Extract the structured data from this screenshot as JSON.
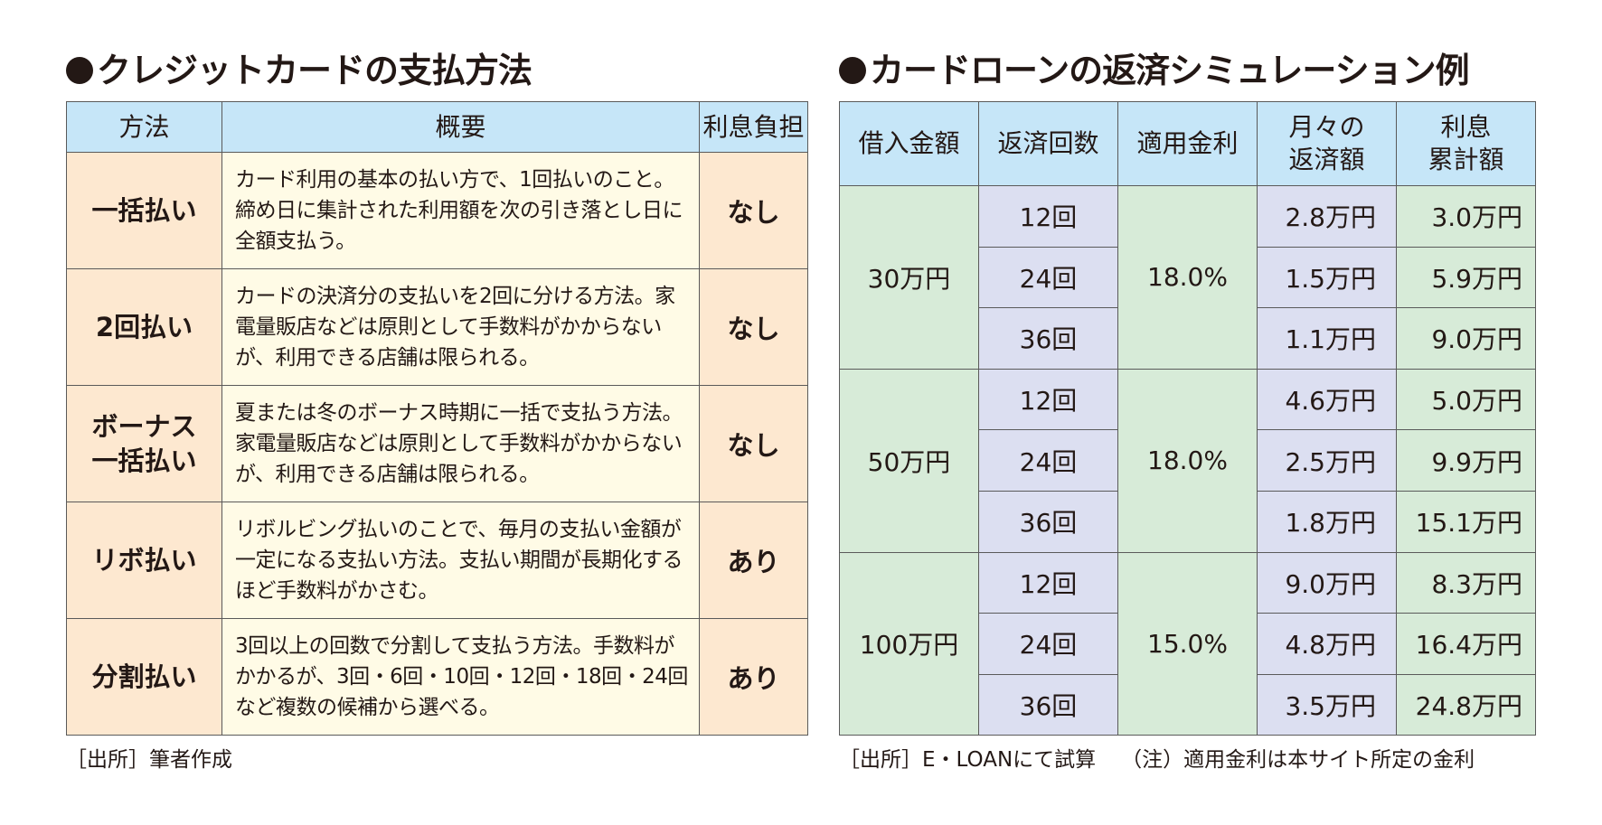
{
  "left": {
    "title": "クレジットカードの支払方法",
    "headers": [
      "方法",
      "概要",
      "利息負担"
    ],
    "rows": [
      {
        "method": "一括払い",
        "summary": "カード利用の基本の払い方で、1回払いのこと。締め日に集計された利用額を次の引き落とし日に全額支払う。",
        "interest": "なし"
      },
      {
        "method": "2回払い",
        "summary": "カードの決済分の支払いを2回に分ける方法。家電量販店などは原則として手数料がかからないが、利用できる店舗は限られる。",
        "interest": "なし"
      },
      {
        "method": "ボーナス一括払い",
        "method_line1": "ボーナス",
        "method_line2": "一括払い",
        "summary": "夏または冬のボーナス時期に一括で支払う方法。家電量販店などは原則として手数料がかからないが、利用できる店舗は限られる。",
        "interest": "なし"
      },
      {
        "method": "リボ払い",
        "summary": "リボルビング払いのことで、毎月の支払い金額が一定になる支払い方法。支払い期間が長期化するほど手数料がかさむ。",
        "interest": "あり"
      },
      {
        "method": "分割払い",
        "summary": "3回以上の回数で分割して支払う方法。手数料がかかるが、3回・6回・10回・12回・18回・24回など複数の候補から選べる。",
        "interest": "あり"
      }
    ],
    "footnote": "［出所］筆者作成"
  },
  "right": {
    "title": "カードローンの返済シミュレーション例",
    "headers": [
      {
        "line1": "借入金額",
        "line2": ""
      },
      {
        "line1": "返済回数",
        "line2": ""
      },
      {
        "line1": "適用金利",
        "line2": ""
      },
      {
        "line1": "月々の",
        "line2": "返済額"
      },
      {
        "line1": "利息",
        "line2": "累計額"
      }
    ],
    "groups": [
      {
        "amount": "30万円",
        "rate": "18.0%",
        "rows": [
          {
            "count": "12回",
            "monthly": "2.8万円",
            "total": "3.0万円"
          },
          {
            "count": "24回",
            "monthly": "1.5万円",
            "total": "5.9万円"
          },
          {
            "count": "36回",
            "monthly": "1.1万円",
            "total": "9.0万円"
          }
        ]
      },
      {
        "amount": "50万円",
        "rate": "18.0%",
        "rows": [
          {
            "count": "12回",
            "monthly": "4.6万円",
            "total": "5.0万円"
          },
          {
            "count": "24回",
            "monthly": "2.5万円",
            "total": "9.9万円"
          },
          {
            "count": "36回",
            "monthly": "1.8万円",
            "total": "15.1万円"
          }
        ]
      },
      {
        "amount": "100万円",
        "rate": "15.0%",
        "rows": [
          {
            "count": "12回",
            "monthly": "9.0万円",
            "total": "8.3万円"
          },
          {
            "count": "24回",
            "monthly": "4.8万円",
            "total": "16.4万円"
          },
          {
            "count": "36回",
            "monthly": "3.5万円",
            "total": "24.8万円"
          }
        ]
      }
    ],
    "footnote_source": "［出所］E・LOANにて試算",
    "footnote_note": "（注）適用金利は本サイト所定の金利"
  },
  "colors": {
    "header_bg": "#c6e6f8",
    "left_method_bg": "#fde8d0",
    "left_summary_bg": "#fffbe6",
    "right_green_bg": "#d7ebd8",
    "right_lavender_bg": "#dcdff1",
    "border": "#5a5a5a",
    "text": "#231815"
  }
}
